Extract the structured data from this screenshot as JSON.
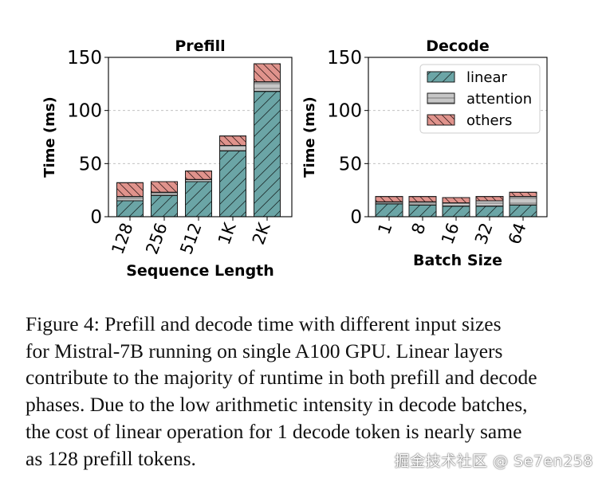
{
  "chart_data": [
    {
      "type": "bar",
      "stacked": true,
      "title": "Prefill",
      "xlabel": "Sequence Length",
      "ylabel": "Time (ms)",
      "ylim": [
        0,
        150
      ],
      "yticks": [
        0,
        50,
        100,
        150
      ],
      "grid": "horizontal dashed",
      "categories": [
        "128",
        "256",
        "512",
        "1K",
        "2K"
      ],
      "series": [
        {
          "name": "linear",
          "values": [
            15,
            20,
            33,
            62,
            118
          ]
        },
        {
          "name": "attention",
          "values": [
            4,
            3,
            2,
            5,
            9
          ]
        },
        {
          "name": "others",
          "values": [
            13,
            10,
            8,
            9,
            17
          ]
        }
      ]
    },
    {
      "type": "bar",
      "stacked": true,
      "title": "Decode",
      "xlabel": "Batch Size",
      "ylabel": "Time (ms)",
      "ylim": [
        0,
        150
      ],
      "yticks": [
        0,
        50,
        100,
        150
      ],
      "grid": "horizontal dashed",
      "legend": "top-right",
      "categories": [
        "1",
        "8",
        "16",
        "32",
        "64"
      ],
      "series": [
        {
          "name": "linear",
          "values": [
            12,
            11,
            10,
            10,
            11
          ]
        },
        {
          "name": "attention",
          "values": [
            2,
            3,
            3,
            5,
            8
          ]
        },
        {
          "name": "others",
          "values": [
            5,
            5,
            5,
            4,
            4
          ]
        }
      ]
    }
  ],
  "colors": {
    "linear": "#6ba5a6",
    "attention": "#c7c7c7",
    "others": "#e0938c",
    "grid": "#b8b8b8"
  },
  "caption": {
    "lines": [
      "Figure 4: Prefill and decode time with different input sizes",
      "for Mistral-7B running on single A100 GPU. Linear layers",
      "contribute to the majority of runtime in both prefill and decode",
      "phases. Due to the low arithmetic intensity in decode batches,",
      "the cost of linear operation for 1 decode token is nearly same",
      "as 128 prefill tokens."
    ]
  },
  "watermark": "掘金技术社区 @ Se7en258"
}
